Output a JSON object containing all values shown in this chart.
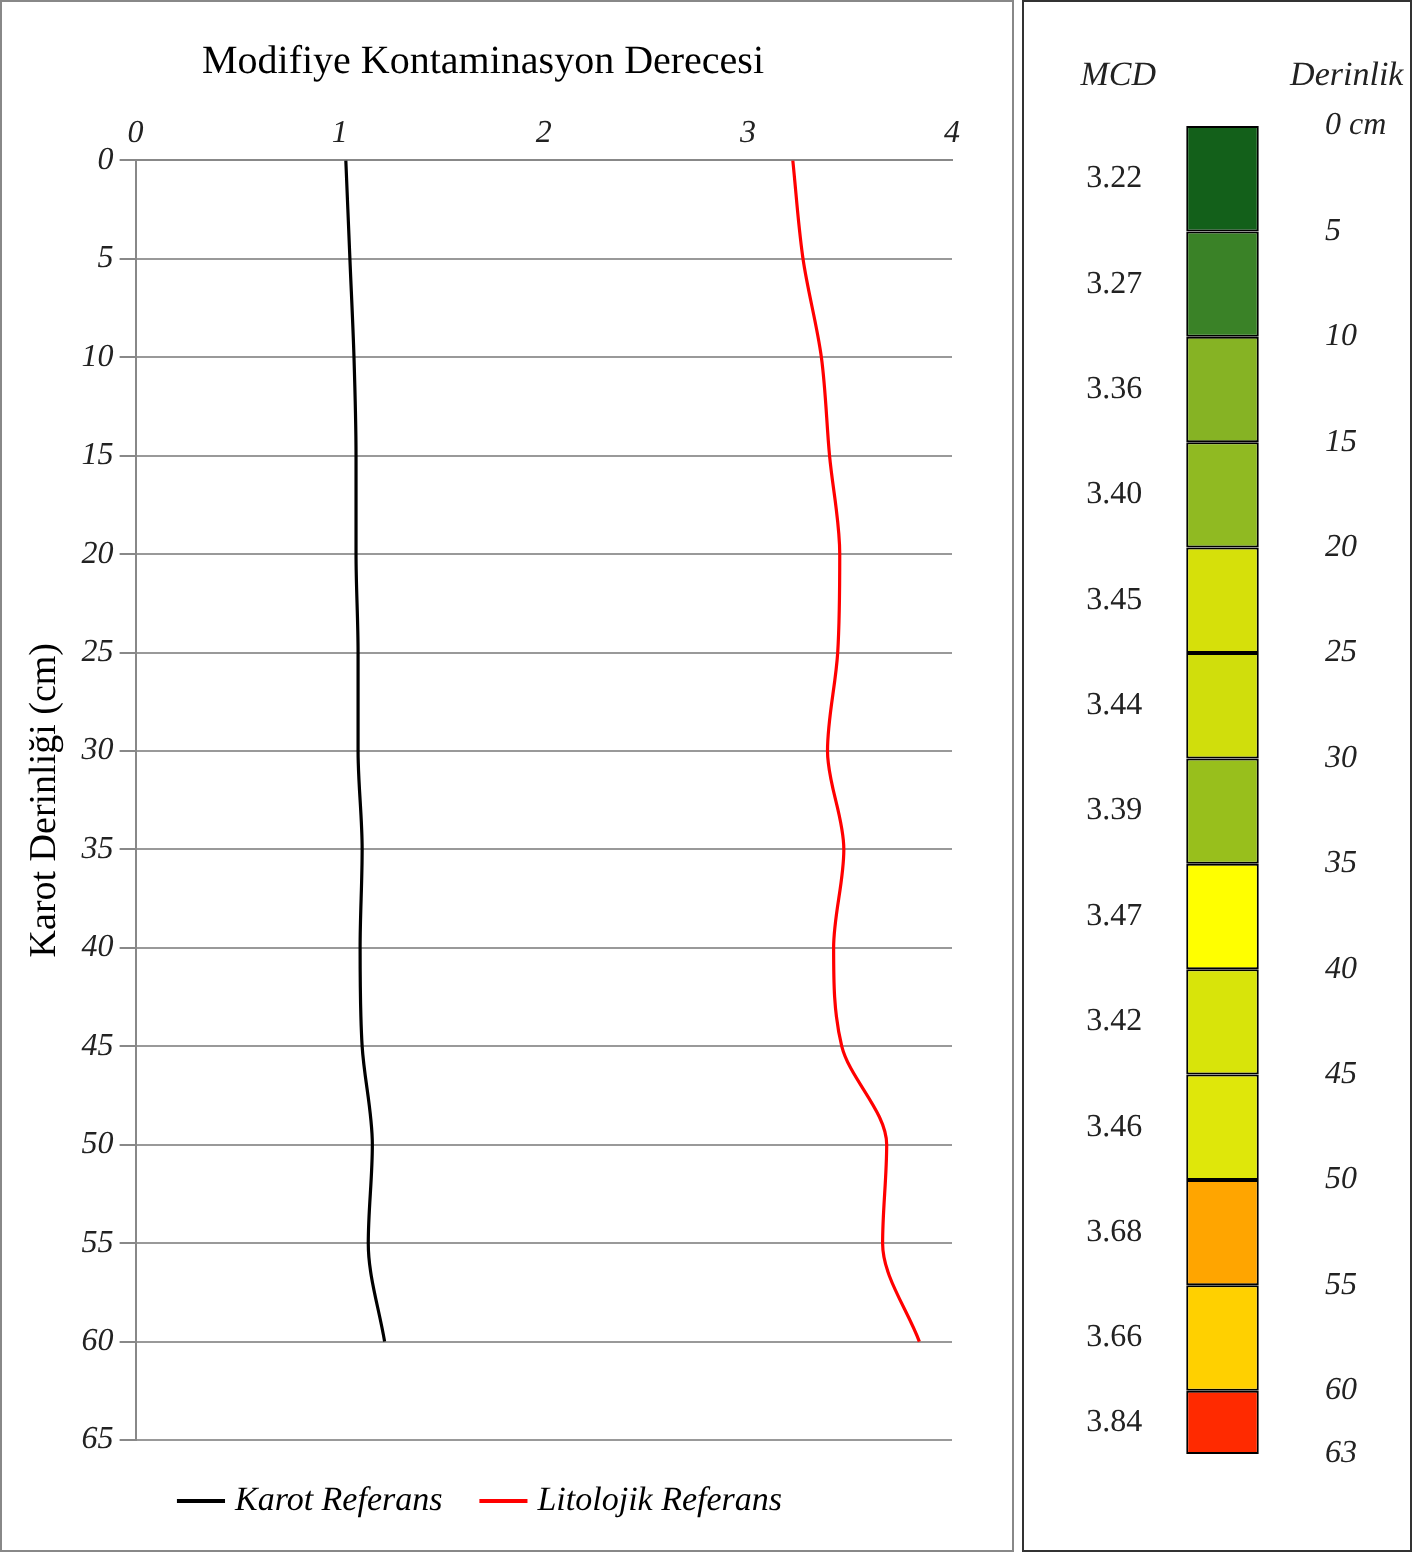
{
  "chart_data": [
    {
      "type": "line",
      "title": "Modifiye Kontaminasyon Derecesi",
      "ylabel": "Karot Derinliği (cm)",
      "orientation": "horizontal",
      "x": [
        0,
        5,
        10,
        15,
        20,
        25,
        30,
        35,
        40,
        45,
        50,
        55,
        60
      ],
      "series": [
        {
          "name": "Karot Referans",
          "color": "#000000",
          "values": [
            1.03,
            1.05,
            1.07,
            1.08,
            1.08,
            1.09,
            1.09,
            1.11,
            1.1,
            1.11,
            1.16,
            1.14,
            1.22
          ]
        },
        {
          "name": "Litolojik Referans",
          "color": "#ff0000",
          "values": [
            3.22,
            3.27,
            3.36,
            3.4,
            3.45,
            3.44,
            3.39,
            3.47,
            3.42,
            3.46,
            3.68,
            3.66,
            3.84
          ]
        }
      ],
      "xlim": [
        0,
        4
      ],
      "xticks": [
        0,
        1,
        2,
        3,
        4
      ],
      "ylim": [
        65,
        0
      ],
      "yticks": [
        0,
        5,
        10,
        15,
        20,
        25,
        30,
        35,
        40,
        45,
        50,
        55,
        60,
        65
      ],
      "grid": "y",
      "legend": "bottom",
      "marker": "none",
      "line_style": "solid"
    },
    {
      "type": "bar",
      "stacked": true,
      "annotations": [
        "MCD"
      ],
      "ylabel": "Derinlik",
      "categories": [
        null
      ],
      "series": [
        {
          "name": "3.22",
          "color": "#13601a",
          "values": [
            5
          ]
        },
        {
          "name": "3.27",
          "color": "#3a8227",
          "values": [
            5
          ]
        },
        {
          "name": "3.36",
          "color": "#86b324",
          "values": [
            5
          ]
        },
        {
          "name": "3.40",
          "color": "#90ba22",
          "values": [
            5
          ]
        },
        {
          "name": "3.45",
          "color": "#d6e00a",
          "values": [
            5
          ]
        },
        {
          "name": "3.44",
          "color": "#d0de0c",
          "values": [
            5
          ]
        },
        {
          "name": "3.39",
          "color": "#98bf1c",
          "values": [
            5
          ]
        },
        {
          "name": "3.47",
          "color": "#ffff00",
          "values": [
            5
          ]
        },
        {
          "name": "3.42",
          "color": "#d8e40a",
          "values": [
            5
          ]
        },
        {
          "name": "3.46",
          "color": "#dfe70a",
          "values": [
            5
          ]
        },
        {
          "name": "3.68",
          "color": "#ffa500",
          "values": [
            5
          ]
        },
        {
          "name": "3.66",
          "color": "#ffd000",
          "values": [
            5
          ]
        },
        {
          "name": "3.84",
          "color": "#ff2a00",
          "values": [
            3
          ]
        }
      ],
      "ylim": [
        63,
        0
      ],
      "yticks": [
        {
          "value": 0,
          "label": "0 cm"
        },
        5,
        10,
        15,
        20,
        25,
        30,
        35,
        40,
        45,
        50,
        55,
        60,
        63
      ]
    }
  ]
}
